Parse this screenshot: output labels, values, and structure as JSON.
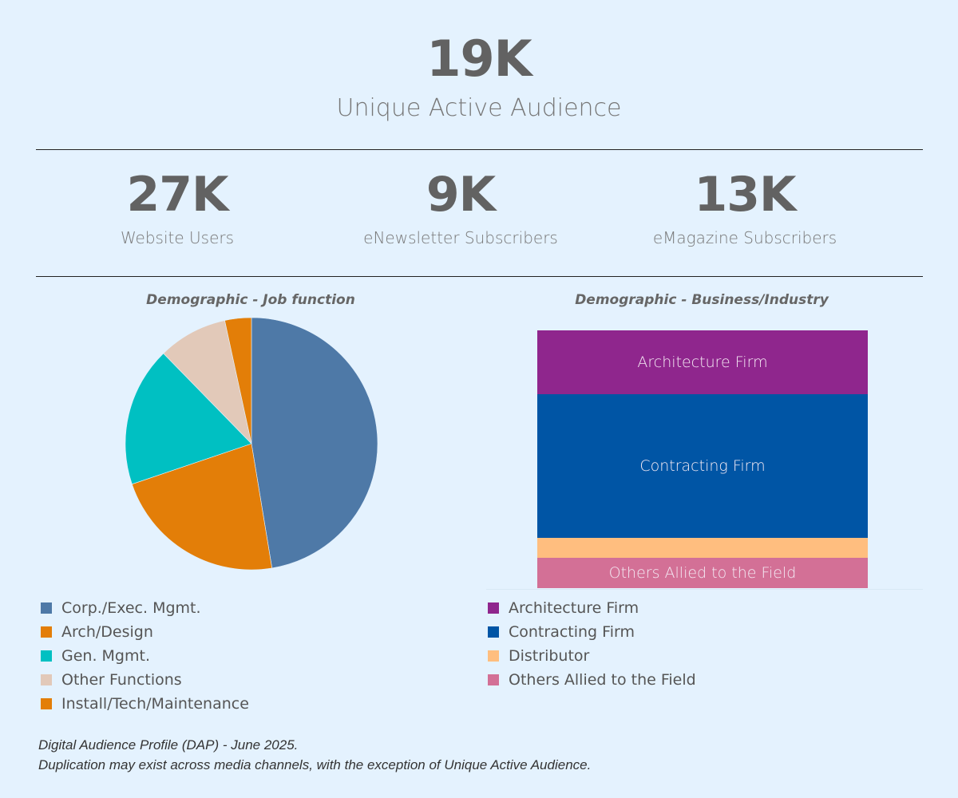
{
  "header": {
    "total_value": "19K",
    "total_label": "Unique Active Audience"
  },
  "kpis": [
    {
      "value": "27K",
      "label": "Website Users"
    },
    {
      "value": "9K",
      "label": "eNewsletter Subscribers"
    },
    {
      "value": "13K",
      "label": "eMagazine Subscribers"
    }
  ],
  "chart_data": [
    {
      "type": "pie",
      "title": "Demographic - Job function",
      "categories": [
        "Corp./Exec. Mgmt.",
        "Arch/Design",
        "Gen. Mgmt.",
        "Other Functions",
        "Install/Tech/Maintenance"
      ],
      "values": [
        47.4,
        22.4,
        17.9,
        8.9,
        3.4
      ],
      "unit": "percent (estimated)",
      "colors": [
        "#4e79a7",
        "#e37e08",
        "#00c0c2",
        "#e2c9b9",
        "#e37e08"
      ],
      "legend": "bottom-left"
    },
    {
      "type": "treemap",
      "title": "Demographic - Business/Industry",
      "categories": [
        "Architecture Firm",
        "Contracting Firm",
        "Distributor",
        "Others Allied to the Field"
      ],
      "values": [
        24.8,
        55.7,
        7.7,
        11.8
      ],
      "unit": "percent (estimated)",
      "colors": [
        "#8f268d",
        "#0055a5",
        "#ffbe7f",
        "#d37096"
      ],
      "labels_shown": [
        "Architecture Firm",
        "Contracting Firm",
        "",
        "Others Allied to the Field"
      ],
      "legend": "bottom-right"
    }
  ],
  "footnotes": [
    "Digital Audience Profile (DAP) - June 2025.",
    "Duplication may exist across media channels, with the exception of Unique Active Audience."
  ]
}
